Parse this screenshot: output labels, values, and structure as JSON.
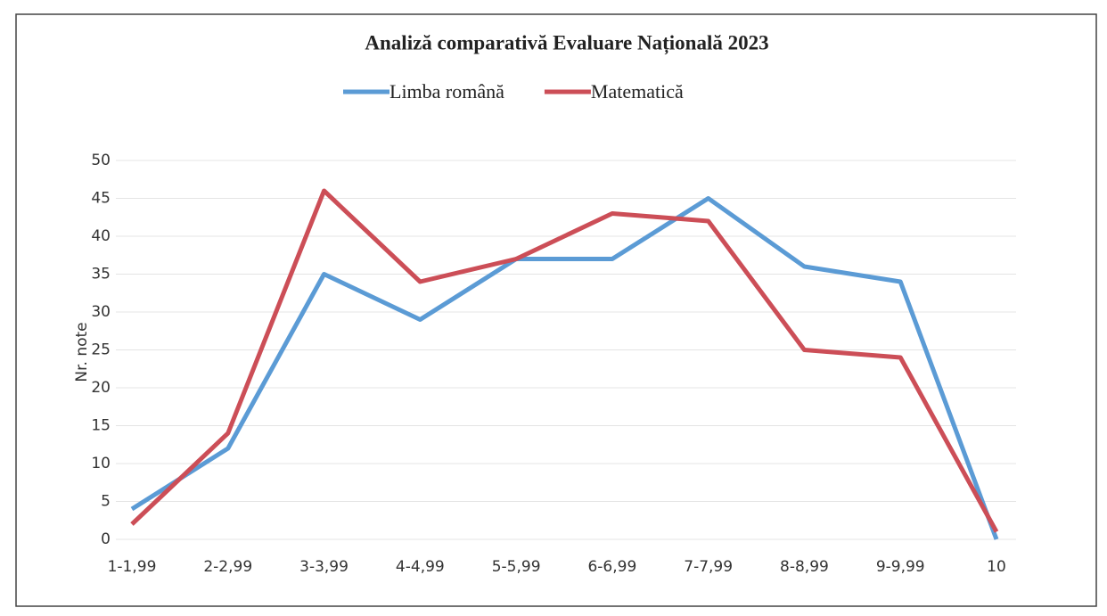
{
  "chart_data": {
    "type": "line",
    "title": "Analiză comparativă Evaluare Națională 2023",
    "y_label": "Nr. note",
    "categories": [
      "1-1,99",
      "2-2,99",
      "3-3,99",
      "4-4,99",
      "5-5,99",
      "6-6,99",
      "7-7,99",
      "8-8,99",
      "9-9,99",
      "10"
    ],
    "series": [
      {
        "name": "Limba română",
        "color": "#5b9bd5",
        "values": [
          4,
          12,
          35,
          29,
          37,
          37,
          45,
          36,
          34,
          0
        ]
      },
      {
        "name": "Matematică",
        "color": "#cc4e57",
        "values": [
          2,
          14,
          46,
          34,
          37,
          43,
          42,
          25,
          24,
          1
        ]
      }
    ],
    "ylim": [
      0,
      50
    ],
    "yticks": [
      0,
      5,
      10,
      15,
      20,
      25,
      30,
      35,
      40,
      45,
      50
    ],
    "grid": true,
    "legend": "top"
  }
}
